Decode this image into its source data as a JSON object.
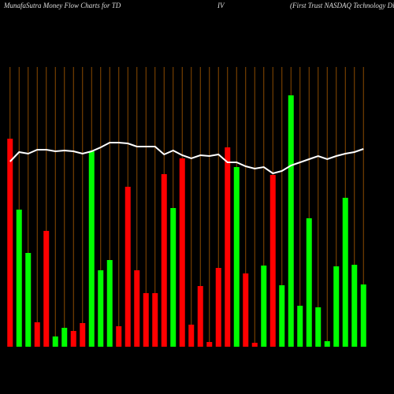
{
  "chart_data": {
    "type": "bar",
    "title": "MunafaSutra  Money Flow  Charts for TD",
    "title_symbol": "IV",
    "subtitle": "(First Trust NASDAQ Technology Divid",
    "categories": [
      null,
      null,
      null,
      null,
      null,
      null,
      null,
      null,
      null,
      null,
      null,
      null,
      null,
      null,
      null,
      null,
      null,
      null,
      null,
      null,
      null,
      null,
      null,
      null,
      null,
      null,
      null,
      null,
      null,
      null,
      null,
      null,
      null,
      null,
      null,
      null,
      null,
      null,
      null,
      null
    ],
    "values": [
      264,
      174,
      119,
      31,
      147,
      13,
      24,
      20,
      30,
      248,
      97,
      110,
      26,
      203,
      97,
      68,
      68,
      219,
      176,
      239,
      28,
      77,
      6,
      100,
      253,
      228,
      93,
      5,
      103,
      218,
      78,
      319,
      52,
      163,
      50,
      7,
      102,
      189,
      104,
      79
    ],
    "colors": [
      "#ff0000",
      "#00ff00",
      "#00ff00",
      "#ff0000",
      "#ff0000",
      "#00ff00",
      "#00ff00",
      "#ff0000",
      "#ff0000",
      "#00ff00",
      "#00ff00",
      "#00ff00",
      "#ff0000",
      "#ff0000",
      "#ff0000",
      "#ff0000",
      "#ff0000",
      "#ff0000",
      "#00ff00",
      "#ff0000",
      "#ff0000",
      "#ff0000",
      "#ff0000",
      "#ff0000",
      "#ff0000",
      "#00ff00",
      "#ff0000",
      "#ff0000",
      "#00ff00",
      "#ff0000",
      "#00ff00",
      "#00ff00",
      "#00ff00",
      "#00ff00",
      "#00ff00",
      "#00ff00",
      "#00ff00",
      "#00ff00",
      "#00ff00",
      "#00ff00"
    ],
    "line": {
      "color": "#ffffff",
      "values": [
        235,
        247,
        245,
        250,
        250,
        248,
        249,
        248,
        245,
        248,
        253,
        259,
        259,
        258,
        254,
        254,
        254,
        244,
        249,
        243,
        239,
        243,
        242,
        244,
        234,
        234,
        229,
        226,
        228,
        220,
        223,
        230,
        234,
        238,
        242,
        238,
        242,
        245,
        247,
        251
      ]
    },
    "ylim": [
      0,
      360
    ],
    "grid": true,
    "grid_color": "#8b4a00"
  }
}
